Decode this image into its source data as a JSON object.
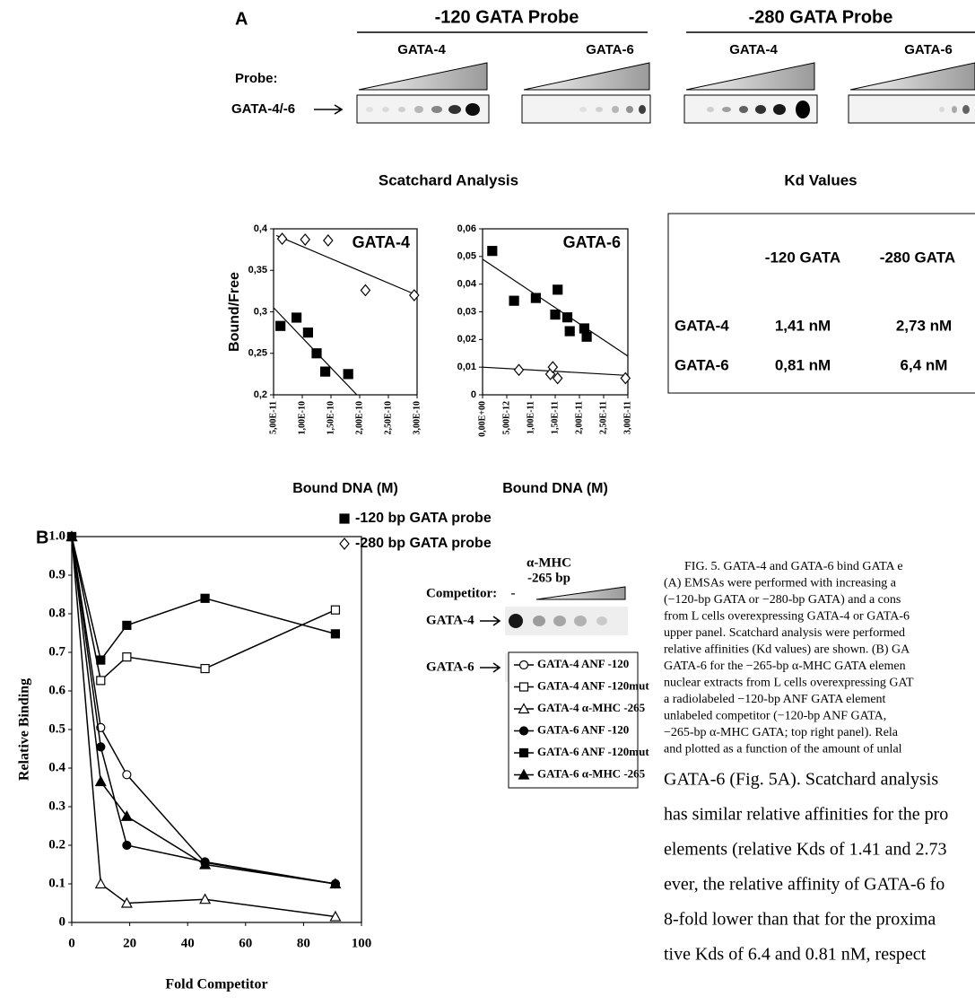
{
  "panel_a": {
    "label": "A",
    "probe_label": "Probe:",
    "band_label": "GATA-4/-6",
    "probe_groups": [
      {
        "title": "-120 GATA Probe",
        "lanes": [
          "GATA-4",
          "GATA-6"
        ]
      },
      {
        "title": "-280 GATA Probe",
        "lanes": [
          "GATA-4",
          "GATA-6"
        ]
      }
    ],
    "scatchard_title": "Scatchard Analysis"
  },
  "chart_data": [
    {
      "type": "scatter",
      "annotation": "GATA-4",
      "xlabel": "Bound DNA (M)",
      "ylabel": "Bound/Free",
      "xlim": [
        5e-11,
        3e-10
      ],
      "xticks": [
        {
          "value": 5e-11,
          "label": "5,00E-11"
        },
        {
          "value": 1e-10,
          "label": "1,00E-10"
        },
        {
          "value": 1.5e-10,
          "label": "1,50E-10"
        },
        {
          "value": 2e-10,
          "label": "2,00E-10"
        },
        {
          "value": 2.5e-10,
          "label": "2,50E-10"
        },
        {
          "value": 3e-10,
          "label": "3,00E-10"
        }
      ],
      "ylim": [
        0.2,
        0.4
      ],
      "yticks": [
        {
          "value": 0.2,
          "label": "0,2"
        },
        {
          "value": 0.25,
          "label": "0,25"
        },
        {
          "value": 0.3,
          "label": "0,3"
        },
        {
          "value": 0.35,
          "label": "0,35"
        },
        {
          "value": 0.4,
          "label": "0,4"
        }
      ],
      "series": [
        {
          "name": "-120 bp GATA probe",
          "color": "#000000",
          "marker": "square",
          "filled": true,
          "x": [
            6.2e-11,
            9e-11,
            1.1e-10,
            1.25e-10,
            1.4e-10,
            1.8e-10
          ],
          "values": [
            0.283,
            0.293,
            0.275,
            0.25,
            0.228,
            0.225
          ],
          "fit": {
            "x": [
              5e-11,
              1.95e-10
            ],
            "values": [
              0.305,
              0.2
            ]
          }
        },
        {
          "name": "-280 bp GATA probe",
          "color": "#000000",
          "marker": "diamond",
          "filled": false,
          "x": [
            6.5e-11,
            1.05e-10,
            1.45e-10,
            2.1e-10,
            2.95e-10
          ],
          "values": [
            0.388,
            0.387,
            0.386,
            0.326,
            0.32
          ],
          "fit": {
            "x": [
              5.5e-11,
              3e-10
            ],
            "values": [
              0.392,
              0.32
            ]
          }
        }
      ]
    },
    {
      "type": "scatter",
      "annotation": "GATA-6",
      "xlabel": "Bound DNA (M)",
      "xlim": [
        0,
        3e-11
      ],
      "xticks": [
        {
          "value": 0,
          "label": "0,00E+00"
        },
        {
          "value": 5e-12,
          "label": "5,00E-12"
        },
        {
          "value": 1e-11,
          "label": "1,00E-11"
        },
        {
          "value": 1.5e-11,
          "label": "1,50E-11"
        },
        {
          "value": 2e-11,
          "label": "2,00E-11"
        },
        {
          "value": 2.5e-11,
          "label": "2,50E-11"
        },
        {
          "value": 3e-11,
          "label": "3,00E-11"
        }
      ],
      "ylim": [
        0,
        0.06
      ],
      "yticks": [
        0,
        {
          "value": 0.01,
          "label": "0,01"
        },
        {
          "value": 0.02,
          "label": "0,02"
        },
        {
          "value": 0.03,
          "label": "0,03"
        },
        {
          "value": 0.04,
          "label": "0,04"
        },
        {
          "value": 0.05,
          "label": "0,05"
        },
        {
          "value": 0.06,
          "label": "0,06"
        }
      ],
      "series": [
        {
          "color": "#000000",
          "marker": "square",
          "filled": true,
          "x": [
            2e-12,
            6.5e-12,
            1.1e-11,
            1.55e-11,
            1.5e-11,
            1.75e-11,
            1.8e-11,
            2.1e-11,
            2.15e-11
          ],
          "values": [
            0.052,
            0.034,
            0.035,
            0.038,
            0.029,
            0.028,
            0.023,
            0.024,
            0.021
          ],
          "fit": {
            "x": [
              0,
              3e-11
            ],
            "values": [
              0.049,
              0.014
            ]
          }
        },
        {
          "color": "#000000",
          "marker": "diamond",
          "filled": false,
          "x": [
            7.5e-12,
            1.4e-11,
            1.45e-11,
            1.55e-11,
            2.95e-11
          ],
          "values": [
            0.009,
            0.0075,
            0.01,
            0.006,
            0.006
          ],
          "fit": {
            "x": [
              0,
              3e-11
            ],
            "values": [
              0.01,
              0.007
            ]
          }
        }
      ]
    },
    {
      "type": "line",
      "xlabel": "Fold Competitor",
      "ylabel": "Relative Binding",
      "x": [
        0,
        10,
        19,
        46,
        91
      ],
      "xlim": [
        0,
        100
      ],
      "xticks": [
        0,
        20,
        40,
        60,
        80,
        100
      ],
      "ylim": [
        0,
        1
      ],
      "yticks": [
        0,
        0.1,
        0.2,
        0.3,
        0.4,
        0.5,
        0.6,
        0.7,
        0.8,
        0.9,
        {
          "value": 1,
          "label": "1.0"
        }
      ],
      "series": [
        {
          "name": "GATA-4 ANF -120",
          "color": "#000000",
          "marker": "circle",
          "filled": false,
          "values": [
            1,
            0.505,
            0.383,
            0.155,
            0.1
          ]
        },
        {
          "name": "GATA-4 ANF -120mut",
          "color": "#000000",
          "marker": "square",
          "filled": false,
          "values": [
            1,
            0.627,
            0.688,
            0.658,
            0.81
          ]
        },
        {
          "name": "GATA-4 α-MHC -265",
          "color": "#000000",
          "marker": "triangle",
          "filled": false,
          "values": [
            1,
            0.1,
            0.05,
            0.06,
            0.015
          ]
        },
        {
          "name": "GATA-6 ANF -120",
          "color": "#000000",
          "marker": "circle",
          "filled": true,
          "values": [
            1,
            0.455,
            0.2,
            0.157,
            0.1
          ]
        },
        {
          "name": "GATA-6 ANF -120mut",
          "color": "#000000",
          "marker": "square",
          "filled": true,
          "values": [
            1,
            0.68,
            0.77,
            0.84,
            0.748
          ]
        },
        {
          "name": "GATA-6 α-MHC -265",
          "color": "#000000",
          "marker": "triangle",
          "filled": true,
          "values": [
            1,
            0.365,
            0.275,
            0.15,
            0.1
          ]
        }
      ]
    }
  ],
  "kd_table": {
    "title": "Kd Values",
    "columns": [
      "-120 GATA",
      "-280 GATA"
    ],
    "rows": [
      [
        "GATA-4",
        "1,41 nM",
        "2,73 nM"
      ],
      [
        "GATA-6",
        "0,81 nM",
        "6,4 nM"
      ]
    ]
  },
  "panel_b": {
    "label": "B",
    "competitor_label": "Competitor:",
    "no_competitor": "-",
    "competitor_name": "α-MHC",
    "competitor_size": "-265 bp",
    "bands": [
      "GATA-4",
      "GATA-6"
    ]
  },
  "caption": [
    "FIG. 5. GATA-4 and GATA-6 bind GATA e",
    "(A) EMSAs were performed with increasing a",
    "(−120-bp GATA or −280-bp GATA) and a cons",
    "from L cells overexpressing GATA-4 or GATA-6",
    "upper panel. Scatchard analysis were performed",
    "relative affinities (Kd values) are shown. (B) GA",
    "GATA-6 for the −265-bp α-MHC GATA elemen",
    "nuclear extracts from L cells overexpressing GAT",
    "a radiolabeled −120-bp ANF GATA element",
    "unlabeled competitor (−120-bp ANF GATA,",
    "−265-bp α-MHC GATA; top right panel). Rela",
    "and plotted as a function of the amount of unlal"
  ],
  "body_text": [
    "GATA-6 (Fig. 5A). Scatchard analysis",
    "has similar relative affinities for the pro",
    "elements (relative Kds of 1.41 and 2.73",
    "ever, the relative affinity of GATA-6 fo",
    "8-fold lower than that for the proxima",
    "tive Kds of 6.4 and 0.81 nM, respect"
  ]
}
